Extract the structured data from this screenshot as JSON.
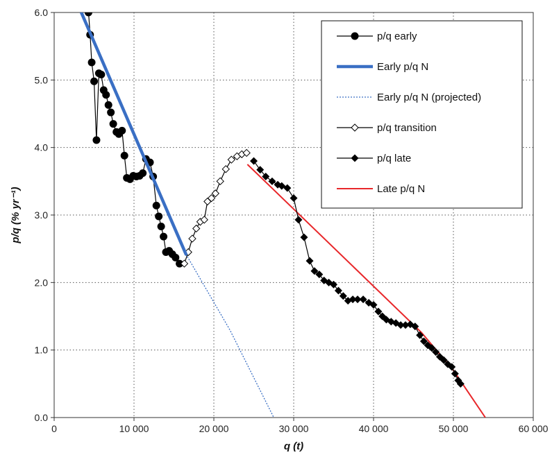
{
  "chart_data": {
    "type": "line",
    "xlabel": "q (t)",
    "ylabel": "p/q (% yr⁻¹)",
    "xlim": [
      0,
      60000
    ],
    "ylim": [
      0,
      6
    ],
    "xticks": [
      0,
      10000,
      20000,
      30000,
      40000,
      50000,
      60000
    ],
    "xtick_labels": [
      "0",
      "10 000",
      "20 000",
      "30 000",
      "40 000",
      "50 000",
      "60 000"
    ],
    "yticks": [
      0,
      1,
      2,
      3,
      4,
      5,
      6
    ],
    "ytick_labels": [
      "0.0",
      "1.0",
      "2.0",
      "3.0",
      "4.0",
      "5.0",
      "6.0"
    ],
    "grid": true,
    "legend_position": "top-right",
    "series": [
      {
        "name": "p/q early",
        "style": "black-line-circle",
        "color": "#000000",
        "points": [
          [
            4300,
            6.0
          ],
          [
            4500,
            5.67
          ],
          [
            4700,
            5.26
          ],
          [
            5000,
            4.98
          ],
          [
            5300,
            4.11
          ],
          [
            5600,
            5.1
          ],
          [
            5900,
            5.08
          ],
          [
            6200,
            4.85
          ],
          [
            6500,
            4.78
          ],
          [
            6800,
            4.63
          ],
          [
            7100,
            4.52
          ],
          [
            7400,
            4.35
          ],
          [
            7800,
            4.23
          ],
          [
            8100,
            4.2
          ],
          [
            8500,
            4.25
          ],
          [
            8800,
            3.88
          ],
          [
            9100,
            3.55
          ],
          [
            9500,
            3.53
          ],
          [
            9900,
            3.58
          ],
          [
            10300,
            3.57
          ],
          [
            10700,
            3.58
          ],
          [
            11100,
            3.62
          ],
          [
            11500,
            3.83
          ],
          [
            12000,
            3.78
          ],
          [
            12400,
            3.57
          ],
          [
            12800,
            3.14
          ],
          [
            13100,
            2.98
          ],
          [
            13400,
            2.83
          ],
          [
            13700,
            2.68
          ],
          [
            14000,
            2.45
          ],
          [
            14400,
            2.47
          ],
          [
            14800,
            2.42
          ],
          [
            15200,
            2.37
          ],
          [
            15700,
            2.28
          ]
        ]
      },
      {
        "name": "Early p/q N",
        "style": "thick-line",
        "color": "#3a6fc4",
        "points": [
          [
            3400,
            6.0
          ],
          [
            16500,
            2.42
          ]
        ]
      },
      {
        "name": "Early p/q N (projected)",
        "style": "dotted-line",
        "color": "#3a6fc4",
        "points": [
          [
            16500,
            2.42
          ],
          [
            22000,
            1.3
          ],
          [
            27500,
            0.0
          ]
        ]
      },
      {
        "name": "p/q transition",
        "style": "black-line-open-diamond",
        "color": "#000000",
        "points": [
          [
            16300,
            2.28
          ],
          [
            16800,
            2.45
          ],
          [
            17300,
            2.65
          ],
          [
            17800,
            2.8
          ],
          [
            18300,
            2.9
          ],
          [
            18800,
            2.93
          ],
          [
            19200,
            3.2
          ],
          [
            19700,
            3.25
          ],
          [
            20200,
            3.32
          ],
          [
            20800,
            3.5
          ],
          [
            21500,
            3.68
          ],
          [
            22200,
            3.82
          ],
          [
            22900,
            3.87
          ],
          [
            23500,
            3.9
          ],
          [
            24100,
            3.92
          ]
        ]
      },
      {
        "name": "p/q late",
        "style": "black-line-diamond",
        "color": "#000000",
        "points": [
          [
            25000,
            3.8
          ],
          [
            25800,
            3.67
          ],
          [
            26500,
            3.57
          ],
          [
            27300,
            3.5
          ],
          [
            28000,
            3.45
          ],
          [
            28500,
            3.43
          ],
          [
            29200,
            3.4
          ],
          [
            30000,
            3.25
          ],
          [
            30600,
            2.93
          ],
          [
            31300,
            2.67
          ],
          [
            32000,
            2.32
          ],
          [
            32600,
            2.17
          ],
          [
            33200,
            2.12
          ],
          [
            33800,
            2.03
          ],
          [
            34400,
            2.0
          ],
          [
            35000,
            1.97
          ],
          [
            35600,
            1.88
          ],
          [
            36200,
            1.8
          ],
          [
            36800,
            1.73
          ],
          [
            37400,
            1.75
          ],
          [
            38000,
            1.75
          ],
          [
            38700,
            1.75
          ],
          [
            39400,
            1.7
          ],
          [
            40000,
            1.67
          ],
          [
            40600,
            1.57
          ],
          [
            41100,
            1.5
          ],
          [
            41600,
            1.45
          ],
          [
            42200,
            1.42
          ],
          [
            42800,
            1.4
          ],
          [
            43400,
            1.37
          ],
          [
            44000,
            1.37
          ],
          [
            44600,
            1.38
          ],
          [
            45200,
            1.35
          ],
          [
            45800,
            1.22
          ],
          [
            46300,
            1.13
          ],
          [
            46800,
            1.07
          ],
          [
            47300,
            1.03
          ],
          [
            47800,
            0.97
          ],
          [
            48300,
            0.9
          ],
          [
            48800,
            0.85
          ],
          [
            49300,
            0.79
          ],
          [
            49800,
            0.75
          ],
          [
            50200,
            0.65
          ],
          [
            50600,
            0.55
          ],
          [
            50900,
            0.5
          ]
        ]
      },
      {
        "name": "Late p/q N",
        "style": "thin-line",
        "color": "#e8272a",
        "points": [
          [
            24200,
            3.75
          ],
          [
            46000,
            1.26
          ],
          [
            50000,
            0.7
          ],
          [
            54000,
            0.0
          ]
        ]
      }
    ]
  }
}
